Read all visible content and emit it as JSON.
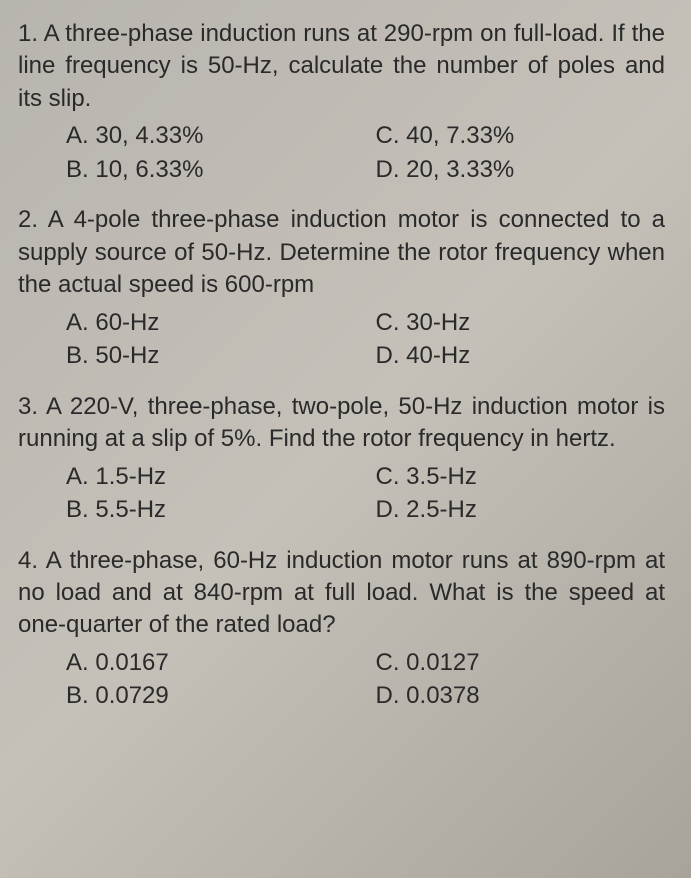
{
  "background_color": "#bcb8b0",
  "text_color": "#2a2a2a",
  "font_family": "Arial",
  "font_size_pt": 18,
  "questions": [
    {
      "number": "1.",
      "text": "A three-phase induction runs at 290-rpm on full-load. If the line frequency is 50-Hz, calculate the number of poles and its slip.",
      "options": {
        "A": "30, 4.33%",
        "B": "10, 6.33%",
        "C": "40, 7.33%",
        "D": "20, 3.33%"
      }
    },
    {
      "number": "2.",
      "text": "A 4-pole three-phase induction motor is connected to a supply source of 50-Hz. Determine the rotor frequency when the actual speed is 600-rpm",
      "options": {
        "A": "60-Hz",
        "B": "50-Hz",
        "C": "30-Hz",
        "D": "40-Hz"
      }
    },
    {
      "number": "3.",
      "text": "A 220-V, three-phase, two-pole, 50-Hz induction motor is running at a slip of 5%. Find the rotor frequency in hertz.",
      "options": {
        "A": "1.5-Hz",
        "B": "5.5-Hz",
        "C": "3.5-Hz",
        "D": "2.5-Hz"
      }
    },
    {
      "number": "4.",
      "text": "A three-phase, 60-Hz induction motor runs at 890-rpm at no load and at 840-rpm at full load. What is the speed at one-quarter of the rated load?",
      "options": {
        "A": "0.0167",
        "B": "0.0729",
        "C": "0.0127",
        "D": "0.0378"
      }
    }
  ]
}
